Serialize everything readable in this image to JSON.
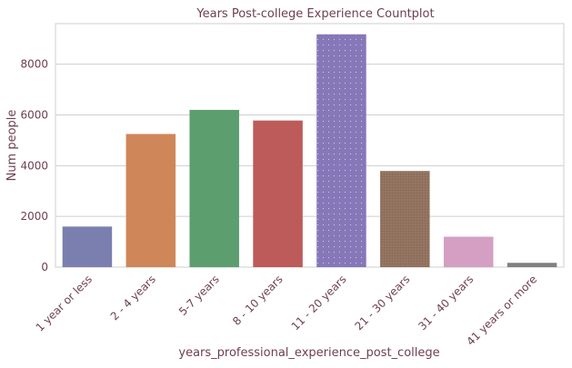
{
  "chart_data": {
    "type": "bar",
    "title": "Years Post-college Experience Countplot",
    "xlabel": "years_professional_experience_post_college",
    "ylabel": "Num people",
    "categories": [
      "1 year or less",
      "2 - 4 years",
      "5-7 years",
      "8 - 10 years",
      "11 - 20 years",
      "21 - 30 years",
      "31 - 40 years",
      "41 years or more"
    ],
    "values": [
      1600,
      5250,
      6200,
      5780,
      9180,
      3790,
      1200,
      170
    ],
    "ylim": [
      0,
      9600
    ],
    "yticks": [
      0,
      2000,
      4000,
      6000,
      8000
    ],
    "grid": "horizontal",
    "colors": [
      "#7b7fb0",
      "#cf8759",
      "#5d9e6e",
      "#bd5a5a",
      "#8677b9",
      "#8e6e5a",
      "#d49fc3",
      "#818181"
    ],
    "text_color": "#6e3f4f",
    "grid_color": "#cfcfcf"
  }
}
